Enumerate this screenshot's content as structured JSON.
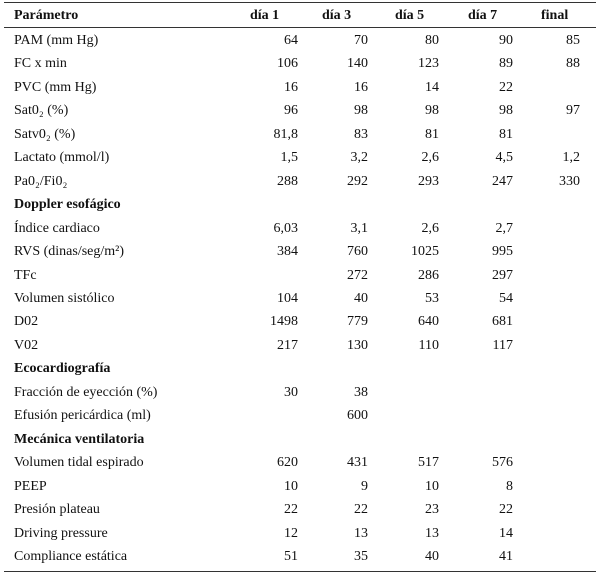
{
  "table": {
    "columns": [
      "Parámetro",
      "día 1",
      "día 3",
      "día 5",
      "día 7",
      "final"
    ],
    "rows": [
      {
        "label": "PAM (mm Hg)",
        "cells": [
          "64",
          "70",
          "80",
          "90",
          "85"
        ]
      },
      {
        "label": "FC x min",
        "cells": [
          "106",
          "140",
          "123",
          "89",
          "88"
        ]
      },
      {
        "label": "PVC (mm Hg)",
        "cells": [
          "16",
          "16",
          "14",
          "22",
          null
        ]
      },
      {
        "label": "Sat0₂ (%)",
        "cells": [
          "96",
          "98",
          "98",
          "98",
          "97"
        ]
      },
      {
        "label": "Satv0₂ (%)",
        "cells": [
          "81,8",
          "83",
          "81",
          "81",
          null
        ]
      },
      {
        "label": "Lactato (mmol/l)",
        "cells": [
          "1,5",
          "3,2",
          "2,6",
          "4,5",
          "1,2"
        ]
      },
      {
        "label": "Pa0₂/Fi0₂",
        "cells": [
          "288",
          "292",
          "293",
          "247",
          "330"
        ]
      },
      {
        "section": "Doppler esofágico"
      },
      {
        "label": "Índice cardiaco",
        "cells": [
          "6,03",
          "3,1",
          "2,6",
          "2,7",
          null
        ]
      },
      {
        "label": "RVS (dinas/seg/m²)",
        "cells": [
          "384",
          "760",
          "1025",
          "995",
          null
        ]
      },
      {
        "label": "TFc",
        "cells": [
          null,
          "272",
          "286",
          "297",
          null
        ]
      },
      {
        "label": "Volumen sistólico",
        "cells": [
          "104",
          "40",
          "53",
          "54",
          null
        ]
      },
      {
        "label": "D02",
        "cells": [
          "1498",
          "779",
          "640",
          "681",
          null
        ]
      },
      {
        "label": "V02",
        "cells": [
          "217",
          "130",
          "110",
          "117",
          null
        ]
      },
      {
        "section": "Ecocardiografía"
      },
      {
        "label": "Fracción de eyección (%)",
        "cells": [
          "30",
          "38",
          null,
          null,
          null
        ]
      },
      {
        "label": "Efusión pericárdica (ml)",
        "cells": [
          null,
          "600",
          null,
          null,
          null
        ]
      },
      {
        "section": "Mecánica ventilatoria"
      },
      {
        "label": "Volumen tidal espirado",
        "cells": [
          "620",
          "431",
          "517",
          "576",
          null
        ]
      },
      {
        "label": "PEEP",
        "cells": [
          "10",
          "9",
          "10",
          "8",
          null
        ]
      },
      {
        "label": "Presión plateau",
        "cells": [
          "22",
          "22",
          "23",
          "22",
          null
        ]
      },
      {
        "label": "Driving pressure",
        "cells": [
          "12",
          "13",
          "13",
          "14",
          null
        ]
      },
      {
        "label": "Compliance estática",
        "cells": [
          "51",
          "35",
          "40",
          "41",
          null
        ]
      }
    ]
  }
}
